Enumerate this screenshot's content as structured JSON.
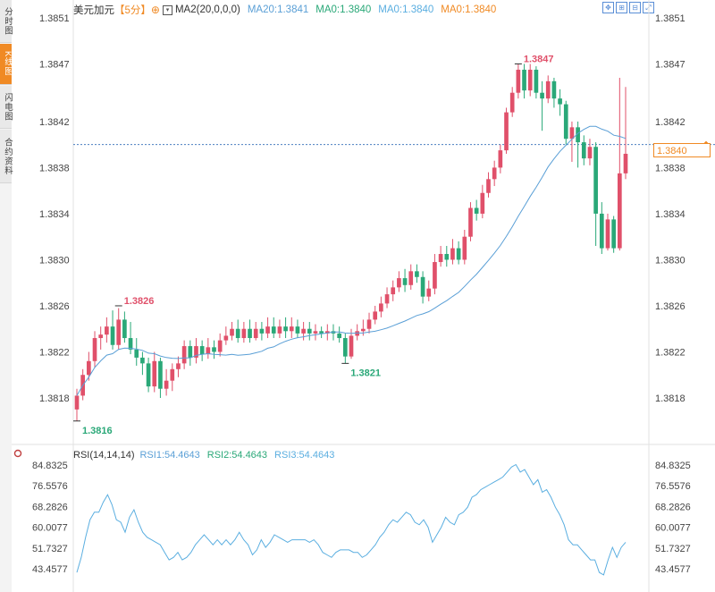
{
  "sidebar": {
    "items": [
      {
        "label": "分时图",
        "active": false
      },
      {
        "label": "K线图",
        "active": true
      },
      {
        "label": "闪电图",
        "active": false
      },
      {
        "label": "合约资料",
        "active": false
      }
    ]
  },
  "legend": {
    "symbol": "美元加元",
    "period": "【5分】",
    "ma2": "MA2(20,0,0,0)",
    "ma20": "MA20:1.3841",
    "ma0_a": "MA0:1.3840",
    "ma0_b": "MA0:1.3840",
    "ma0_c": "MA0:1.3840"
  },
  "rsi_legend": {
    "name": "RSI(14,14,14)",
    "rsi1": "RSI1:54.4643",
    "rsi2": "RSI2:54.4643",
    "rsi3": "RSI3:54.4643"
  },
  "current_price": "1.3840",
  "colors": {
    "up": "#e0506a",
    "down": "#2aa878",
    "ma_line": "#5a9fd6",
    "rsi_line": "#5aaee0",
    "price_line": "#4a7ec0",
    "orange": "#f08a24",
    "axis_text": "#444444"
  },
  "icons": [
    "zoom-fit-icon",
    "zoom-in-icon",
    "zoom-out-icon",
    "fullscreen-icon"
  ],
  "chart_data": [
    {
      "type": "candlestick",
      "ylim": [
        1.3816,
        1.3852
      ],
      "y_tick_labels": [
        "1.3851",
        "1.3847",
        "1.3842",
        "1.3838",
        "1.3834",
        "1.3830",
        "1.3826",
        "1.3822",
        "1.3818"
      ],
      "y_tick_values": [
        1.3851,
        1.3847,
        1.3842,
        1.3838,
        1.3834,
        1.383,
        1.3826,
        1.3822,
        1.3818
      ],
      "current_price": 1.384,
      "annotations": [
        {
          "label": "1.3816",
          "value": 1.3816,
          "bar": 0
        },
        {
          "label": "1.3826",
          "value": 1.3826,
          "bar": 7
        },
        {
          "label": "1.3821",
          "value": 1.3821,
          "bar": 45
        },
        {
          "label": "1.3847",
          "value": 1.3847,
          "bar": 74
        }
      ],
      "candles": [
        [
          1.3817,
          1.38182,
          1.38188,
          1.3816
        ],
        [
          1.38182,
          1.382,
          1.38205,
          1.38178
        ],
        [
          1.382,
          1.38212,
          1.3822,
          1.38195
        ],
        [
          1.38212,
          1.38232,
          1.38238,
          1.38206
        ],
        [
          1.38232,
          1.38235,
          1.38242,
          1.38222
        ],
        [
          1.38235,
          1.38242,
          1.3825,
          1.38228
        ],
        [
          1.38242,
          1.38226,
          1.38256,
          1.38222
        ],
        [
          1.38226,
          1.38248,
          1.38258,
          1.38222
        ],
        [
          1.38248,
          1.38232,
          1.38255,
          1.38228
        ],
        [
          1.38232,
          1.38222,
          1.38246,
          1.38218
        ],
        [
          1.38222,
          1.38215,
          1.38232,
          1.38208
        ],
        [
          1.38215,
          1.3821,
          1.3822,
          1.382
        ],
        [
          1.3821,
          1.3819,
          1.38215,
          1.38185
        ],
        [
          1.3819,
          1.38212,
          1.3822,
          1.38185
        ],
        [
          1.38212,
          1.38188,
          1.38215,
          1.3818
        ],
        [
          1.38188,
          1.38195,
          1.38205,
          1.38182
        ],
        [
          1.38195,
          1.38205,
          1.3821,
          1.38186
        ],
        [
          1.38205,
          1.3821,
          1.38216,
          1.38198
        ],
        [
          1.3821,
          1.38225,
          1.3823,
          1.38205
        ],
        [
          1.38225,
          1.38215,
          1.3823,
          1.38208
        ],
        [
          1.38215,
          1.38225,
          1.38232,
          1.3821
        ],
        [
          1.38225,
          1.38218,
          1.3823,
          1.38212
        ],
        [
          1.38218,
          1.38224,
          1.38232,
          1.38214
        ],
        [
          1.38224,
          1.3822,
          1.3823,
          1.38214
        ],
        [
          1.3822,
          1.3823,
          1.38236,
          1.38216
        ],
        [
          1.3823,
          1.38234,
          1.38242,
          1.38226
        ],
        [
          1.38234,
          1.3824,
          1.38246,
          1.3823
        ],
        [
          1.3824,
          1.38232,
          1.38248,
          1.38228
        ],
        [
          1.38232,
          1.3824,
          1.38246,
          1.38228
        ],
        [
          1.3824,
          1.38232,
          1.38248,
          1.38228
        ],
        [
          1.38232,
          1.3824,
          1.38246,
          1.3823
        ],
        [
          1.3824,
          1.38236,
          1.38246,
          1.3823
        ],
        [
          1.38236,
          1.38242,
          1.3825,
          1.38232
        ],
        [
          1.38242,
          1.38236,
          1.3825,
          1.38232
        ],
        [
          1.38236,
          1.38242,
          1.38248,
          1.38232
        ],
        [
          1.38242,
          1.38238,
          1.3825,
          1.38232
        ],
        [
          1.38238,
          1.38242,
          1.3825,
          1.38232
        ],
        [
          1.38242,
          1.38236,
          1.38248,
          1.38232
        ],
        [
          1.38236,
          1.3824,
          1.38246,
          1.3823
        ],
        [
          1.3824,
          1.38236,
          1.38246,
          1.3823
        ],
        [
          1.38236,
          1.38238,
          1.38244,
          1.3823
        ],
        [
          1.38238,
          1.38236,
          1.38242,
          1.38232
        ],
        [
          1.38236,
          1.38238,
          1.38244,
          1.3823
        ],
        [
          1.38238,
          1.38236,
          1.38244,
          1.3823
        ],
        [
          1.38236,
          1.38232,
          1.38242,
          1.38228
        ],
        [
          1.38232,
          1.38216,
          1.38236,
          1.3821
        ],
        [
          1.38216,
          1.38234,
          1.3824,
          1.38214
        ],
        [
          1.38234,
          1.38238,
          1.38244,
          1.3823
        ],
        [
          1.38238,
          1.3824,
          1.38248,
          1.38234
        ],
        [
          1.3824,
          1.38248,
          1.38254,
          1.38236
        ],
        [
          1.38248,
          1.38255,
          1.3826,
          1.38244
        ],
        [
          1.38255,
          1.38262,
          1.38268,
          1.3825
        ],
        [
          1.38262,
          1.3827,
          1.38276,
          1.38258
        ],
        [
          1.3827,
          1.38276,
          1.38282,
          1.38264
        ],
        [
          1.38276,
          1.38284,
          1.3829,
          1.38272
        ],
        [
          1.38284,
          1.38278,
          1.38292,
          1.38272
        ],
        [
          1.38278,
          1.3829,
          1.38296,
          1.38274
        ],
        [
          1.3829,
          1.38285,
          1.38296,
          1.3828
        ],
        [
          1.38285,
          1.38268,
          1.3829,
          1.38262
        ],
        [
          1.38268,
          1.38275,
          1.38282,
          1.38264
        ],
        [
          1.38275,
          1.38298,
          1.38305,
          1.3827
        ],
        [
          1.38298,
          1.38305,
          1.38312,
          1.38294
        ],
        [
          1.38305,
          1.383,
          1.38312,
          1.38294
        ],
        [
          1.383,
          1.3831,
          1.38318,
          1.38296
        ],
        [
          1.3831,
          1.383,
          1.38316,
          1.38296
        ],
        [
          1.383,
          1.3832,
          1.38326,
          1.38296
        ],
        [
          1.3832,
          1.38345,
          1.3835,
          1.38316
        ],
        [
          1.38345,
          1.3834,
          1.38352,
          1.38334
        ],
        [
          1.3834,
          1.38358,
          1.38365,
          1.38336
        ],
        [
          1.38358,
          1.3837,
          1.38376,
          1.38354
        ],
        [
          1.3837,
          1.3838,
          1.38386,
          1.38364
        ],
        [
          1.3838,
          1.38395,
          1.384,
          1.38375
        ],
        [
          1.38395,
          1.38428,
          1.38432,
          1.38392
        ],
        [
          1.38428,
          1.38445,
          1.3845,
          1.38424
        ],
        [
          1.38445,
          1.38465,
          1.3847,
          1.3844
        ],
        [
          1.38465,
          1.38447,
          1.3847,
          1.3844
        ],
        [
          1.38447,
          1.38465,
          1.3847,
          1.38442
        ],
        [
          1.38465,
          1.38445,
          1.38468,
          1.3844
        ],
        [
          1.38445,
          1.3844,
          1.38455,
          1.38412
        ],
        [
          1.3844,
          1.38455,
          1.3846,
          1.38436
        ],
        [
          1.38455,
          1.3844,
          1.38458,
          1.38432
        ],
        [
          1.3844,
          1.38435,
          1.38448,
          1.38425
        ],
        [
          1.38435,
          1.38405,
          1.38438,
          1.384
        ],
        [
          1.38405,
          1.38415,
          1.3842,
          1.38385
        ],
        [
          1.38415,
          1.38402,
          1.3842,
          1.3838
        ],
        [
          1.38402,
          1.38388,
          1.38408,
          1.38382
        ],
        [
          1.38388,
          1.38398,
          1.38405,
          1.38382
        ],
        [
          1.38398,
          1.3834,
          1.38402,
          1.38312
        ],
        [
          1.3834,
          1.3831,
          1.3835,
          1.38305
        ],
        [
          1.3831,
          1.38335,
          1.3834,
          1.38308
        ],
        [
          1.38335,
          1.3831,
          1.38338,
          1.38306
        ],
        [
          1.3831,
          1.38375,
          1.38458,
          1.38308
        ],
        [
          1.38375,
          1.38392,
          1.3845,
          1.3837
        ]
      ]
    },
    {
      "type": "line",
      "title": "RSI(14,14,14)",
      "ylim": [
        41.6,
        85.9
      ],
      "y_tick_labels": [
        "84.8325",
        "76.5576",
        "68.2826",
        "60.0077",
        "51.7327",
        "43.4577"
      ],
      "y_tick_values": [
        84.8325,
        76.5576,
        68.2826,
        60.0077,
        51.7327,
        43.4577
      ],
      "series": [
        {
          "name": "RSI1",
          "values": [
            42,
            48,
            56,
            63,
            66,
            66,
            70,
            73,
            69,
            63,
            62,
            58,
            64,
            67,
            62,
            58,
            56,
            55,
            54,
            53,
            50,
            47,
            48,
            50,
            47,
            48,
            50,
            53,
            55,
            57,
            55,
            53,
            55,
            53,
            55,
            53,
            55,
            58,
            55,
            53,
            49,
            51,
            55,
            52,
            54,
            57,
            56,
            55,
            54,
            55,
            55,
            55,
            55,
            54,
            55,
            53,
            50,
            49,
            48,
            50,
            51,
            51,
            51,
            50,
            50,
            48,
            49,
            51,
            53,
            56,
            58,
            61,
            63,
            62,
            64,
            66,
            65,
            62,
            61,
            63,
            60,
            54,
            57,
            60,
            64,
            62,
            61,
            65,
            66,
            68,
            72,
            73,
            75,
            76,
            77,
            78,
            79,
            80,
            82,
            84,
            85,
            82,
            83,
            80,
            77,
            79,
            74,
            75,
            72,
            68,
            65,
            61,
            55,
            53,
            53,
            51,
            49,
            47,
            47,
            42,
            41,
            47,
            52,
            48,
            52,
            54
          ]
        }
      ]
    }
  ]
}
